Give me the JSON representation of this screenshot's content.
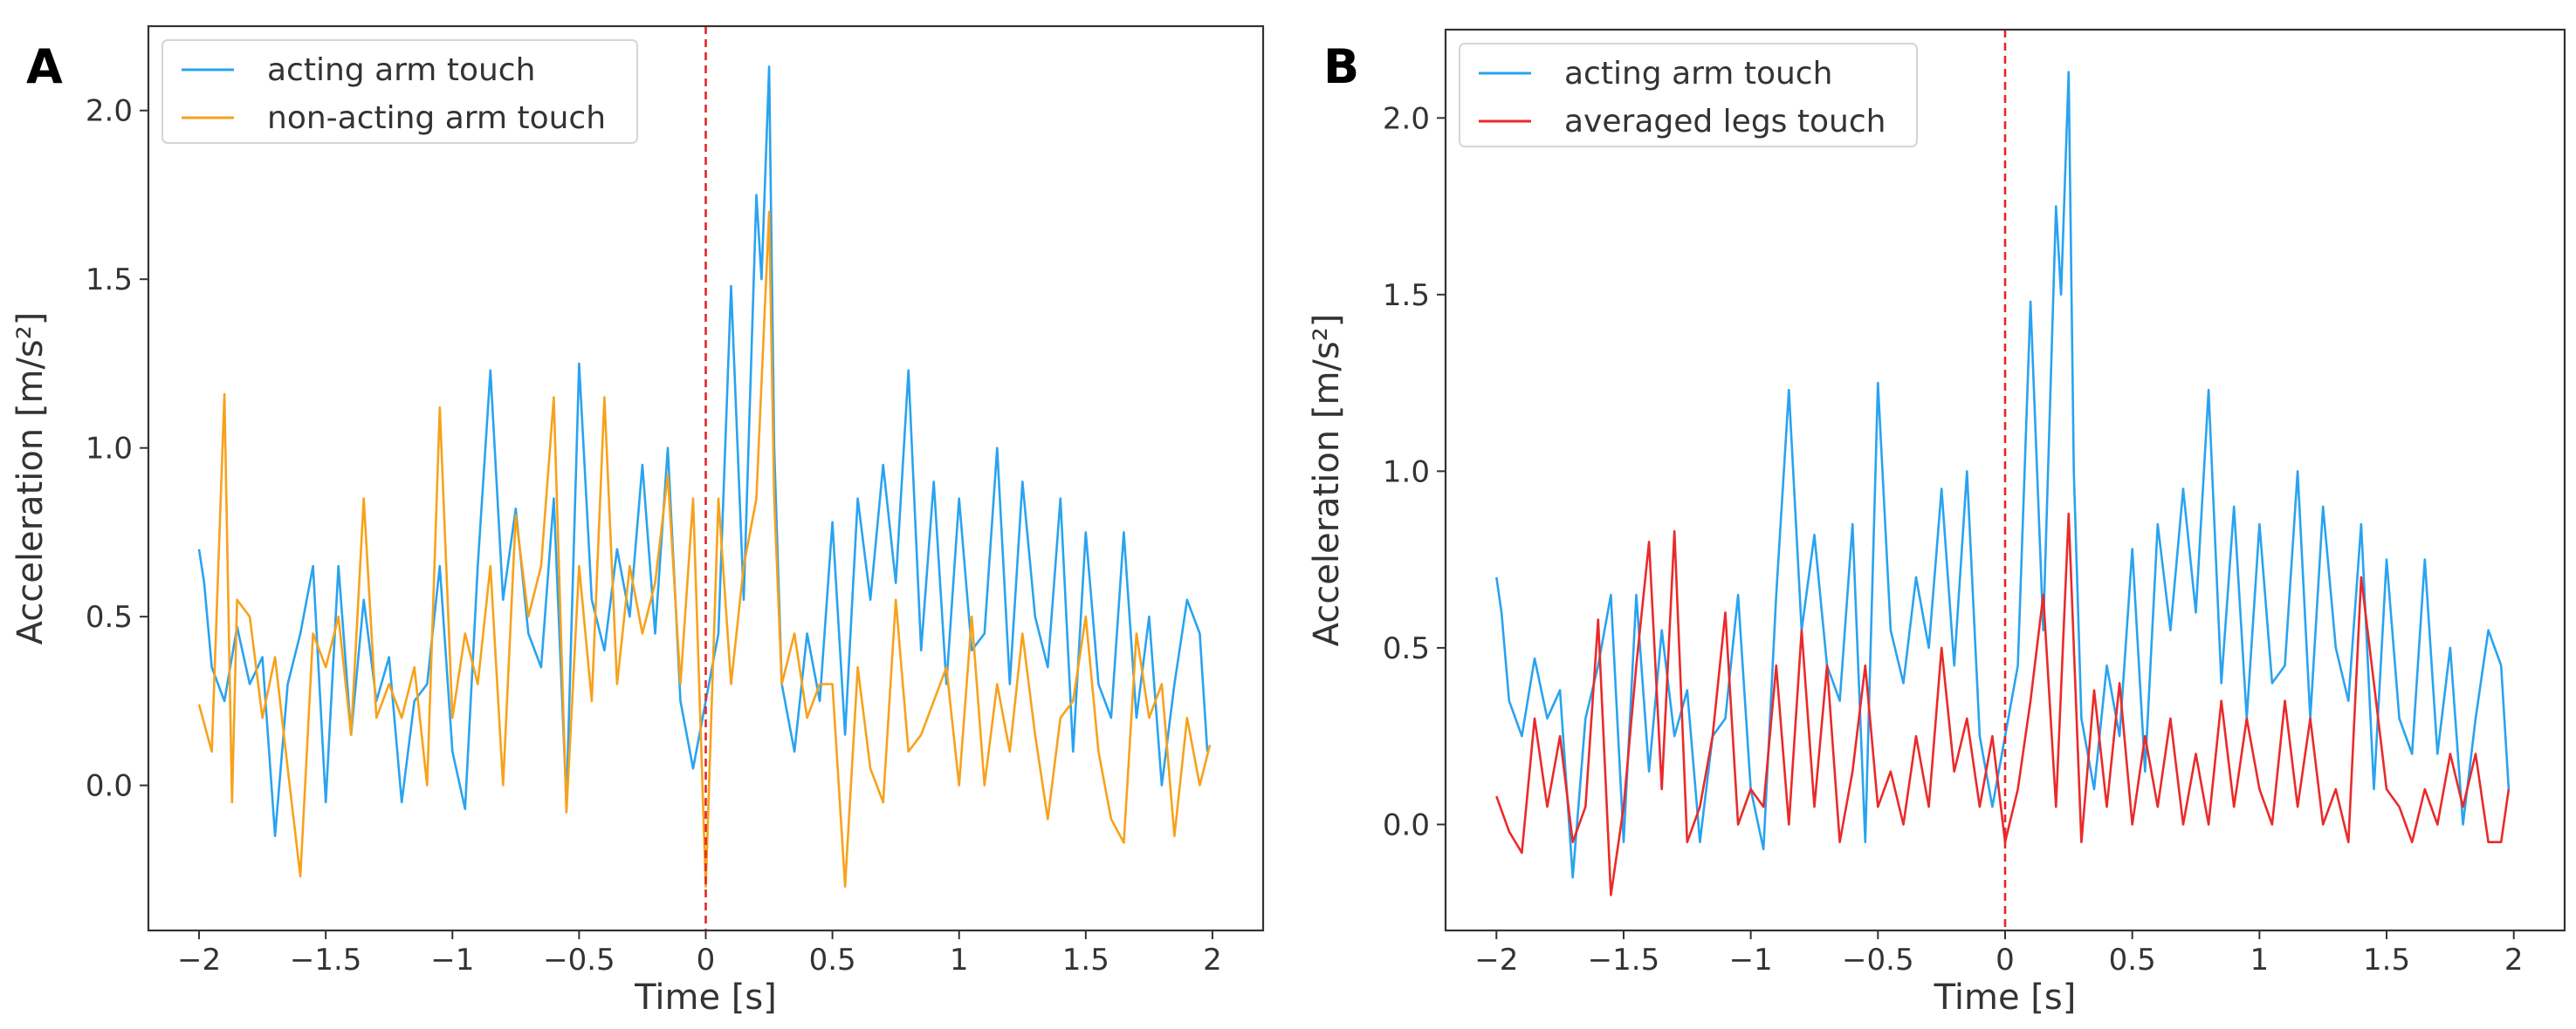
{
  "colors": {
    "acting_arm": "#29a3f0",
    "non_acting_arm": "#f7a21b",
    "legs": "#ea2a2a",
    "event_line": "#e32626",
    "axes": "#333333"
  },
  "chart_data": [
    {
      "panel": "A",
      "type": "line",
      "xlabel": "Time [s]",
      "ylabel": "Acceleration [m/s²]",
      "xlim": [
        -2.2,
        2.2
      ],
      "ylim": [
        -0.43,
        2.25
      ],
      "xticks": [
        -2,
        -1.5,
        -1,
        -0.5,
        0,
        0.5,
        1,
        1.5,
        2
      ],
      "xtick_labels": [
        "−2",
        "−1.5",
        "−1",
        "−0.5",
        "0",
        "0.5",
        "1",
        "1.5",
        "2"
      ],
      "yticks": [
        0,
        0.5,
        1,
        1.5,
        2
      ],
      "ytick_labels": [
        "0.0",
        "0.5",
        "1.0",
        "1.5",
        "2.0"
      ],
      "event_x": 0,
      "legend_position": "top-left",
      "series": [
        {
          "name": "acting arm touch",
          "color": "#29a3f0",
          "x": [
            -2.0,
            -1.98,
            -1.95,
            -1.9,
            -1.85,
            -1.8,
            -1.75,
            -1.7,
            -1.65,
            -1.6,
            -1.55,
            -1.5,
            -1.45,
            -1.4,
            -1.35,
            -1.3,
            -1.25,
            -1.2,
            -1.15,
            -1.1,
            -1.05,
            -1.0,
            -0.95,
            -0.9,
            -0.85,
            -0.8,
            -0.75,
            -0.7,
            -0.65,
            -0.6,
            -0.55,
            -0.5,
            -0.45,
            -0.4,
            -0.35,
            -0.3,
            -0.25,
            -0.2,
            -0.15,
            -0.1,
            -0.05,
            0.0,
            0.05,
            0.1,
            0.15,
            0.2,
            0.22,
            0.25,
            0.27,
            0.3,
            0.35,
            0.4,
            0.45,
            0.5,
            0.55,
            0.6,
            0.65,
            0.7,
            0.75,
            0.8,
            0.85,
            0.9,
            0.95,
            1.0,
            1.05,
            1.1,
            1.15,
            1.2,
            1.25,
            1.3,
            1.35,
            1.4,
            1.45,
            1.5,
            1.55,
            1.6,
            1.65,
            1.7,
            1.75,
            1.8,
            1.85,
            1.9,
            1.95,
            1.98
          ],
          "y": [
            0.7,
            0.6,
            0.35,
            0.25,
            0.47,
            0.3,
            0.38,
            -0.15,
            0.3,
            0.45,
            0.65,
            -0.05,
            0.65,
            0.15,
            0.55,
            0.25,
            0.38,
            -0.05,
            0.25,
            0.3,
            0.65,
            0.1,
            -0.07,
            0.65,
            1.23,
            0.55,
            0.82,
            0.45,
            0.35,
            0.85,
            -0.05,
            1.25,
            0.55,
            0.4,
            0.7,
            0.5,
            0.95,
            0.45,
            1.0,
            0.25,
            0.05,
            0.25,
            0.45,
            1.48,
            0.55,
            1.75,
            1.5,
            2.13,
            1.0,
            0.3,
            0.1,
            0.45,
            0.25,
            0.78,
            0.15,
            0.85,
            0.55,
            0.95,
            0.6,
            1.23,
            0.4,
            0.9,
            0.3,
            0.85,
            0.4,
            0.45,
            1.0,
            0.3,
            0.9,
            0.5,
            0.35,
            0.85,
            0.1,
            0.75,
            0.3,
            0.2,
            0.75,
            0.2,
            0.5,
            0.0,
            0.3,
            0.55,
            0.45,
            0.1
          ]
        },
        {
          "name": "non-acting arm touch",
          "color": "#f7a21b",
          "x": [
            -2.0,
            -1.95,
            -1.9,
            -1.87,
            -1.85,
            -1.8,
            -1.75,
            -1.7,
            -1.65,
            -1.6,
            -1.55,
            -1.5,
            -1.45,
            -1.4,
            -1.35,
            -1.3,
            -1.25,
            -1.2,
            -1.15,
            -1.1,
            -1.05,
            -1.0,
            -0.95,
            -0.9,
            -0.85,
            -0.8,
            -0.75,
            -0.7,
            -0.65,
            -0.6,
            -0.55,
            -0.5,
            -0.45,
            -0.4,
            -0.35,
            -0.3,
            -0.25,
            -0.2,
            -0.15,
            -0.1,
            -0.05,
            0.0,
            0.05,
            0.1,
            0.15,
            0.2,
            0.25,
            0.27,
            0.3,
            0.35,
            0.4,
            0.45,
            0.5,
            0.55,
            0.6,
            0.65,
            0.7,
            0.75,
            0.8,
            0.85,
            0.9,
            0.95,
            1.0,
            1.05,
            1.1,
            1.15,
            1.2,
            1.25,
            1.3,
            1.35,
            1.4,
            1.45,
            1.5,
            1.55,
            1.6,
            1.65,
            1.7,
            1.75,
            1.8,
            1.85,
            1.9,
            1.95,
            1.99
          ],
          "y": [
            0.24,
            0.1,
            1.16,
            -0.05,
            0.55,
            0.5,
            0.2,
            0.38,
            0.05,
            -0.27,
            0.45,
            0.35,
            0.5,
            0.15,
            0.85,
            0.2,
            0.3,
            0.2,
            0.35,
            0.0,
            1.12,
            0.2,
            0.45,
            0.3,
            0.65,
            0.0,
            0.8,
            0.5,
            0.65,
            1.15,
            -0.08,
            0.65,
            0.25,
            1.15,
            0.3,
            0.65,
            0.45,
            0.6,
            0.92,
            0.3,
            0.85,
            -0.3,
            0.85,
            0.3,
            0.65,
            0.85,
            1.7,
            0.85,
            0.3,
            0.45,
            0.2,
            0.3,
            0.3,
            -0.3,
            0.35,
            0.05,
            -0.05,
            0.55,
            0.1,
            0.15,
            0.25,
            0.35,
            0.0,
            0.5,
            0.0,
            0.3,
            0.1,
            0.45,
            0.15,
            -0.1,
            0.2,
            0.25,
            0.5,
            0.1,
            -0.1,
            -0.17,
            0.45,
            0.2,
            0.3,
            -0.15,
            0.2,
            0.0,
            0.12
          ]
        }
      ]
    },
    {
      "panel": "B",
      "type": "line",
      "xlabel": "Time [s]",
      "ylabel": "Acceleration [m/s²]",
      "xlim": [
        -2.2,
        2.2
      ],
      "ylim": [
        -0.3,
        2.25
      ],
      "xticks": [
        -2,
        -1.5,
        -1,
        -0.5,
        0,
        0.5,
        1,
        1.5,
        2
      ],
      "xtick_labels": [
        "−2",
        "−1.5",
        "−1",
        "−0.5",
        "0",
        "0.5",
        "1",
        "1.5",
        "2"
      ],
      "yticks": [
        0,
        0.5,
        1,
        1.5,
        2
      ],
      "ytick_labels": [
        "0.0",
        "0.5",
        "1.0",
        "1.5",
        "2.0"
      ],
      "event_x": 0,
      "legend_position": "top-left",
      "series": [
        {
          "name": "acting arm touch",
          "color": "#29a3f0",
          "x": [
            -2.0,
            -1.98,
            -1.95,
            -1.9,
            -1.85,
            -1.8,
            -1.75,
            -1.7,
            -1.65,
            -1.6,
            -1.55,
            -1.5,
            -1.45,
            -1.4,
            -1.35,
            -1.3,
            -1.25,
            -1.2,
            -1.15,
            -1.1,
            -1.05,
            -1.0,
            -0.95,
            -0.9,
            -0.85,
            -0.8,
            -0.75,
            -0.7,
            -0.65,
            -0.6,
            -0.55,
            -0.5,
            -0.45,
            -0.4,
            -0.35,
            -0.3,
            -0.25,
            -0.2,
            -0.15,
            -0.1,
            -0.05,
            0.0,
            0.05,
            0.1,
            0.15,
            0.2,
            0.22,
            0.25,
            0.27,
            0.3,
            0.35,
            0.4,
            0.45,
            0.5,
            0.55,
            0.6,
            0.65,
            0.7,
            0.75,
            0.8,
            0.85,
            0.9,
            0.95,
            1.0,
            1.05,
            1.1,
            1.15,
            1.2,
            1.25,
            1.3,
            1.35,
            1.4,
            1.45,
            1.5,
            1.55,
            1.6,
            1.65,
            1.7,
            1.75,
            1.8,
            1.85,
            1.9,
            1.95,
            1.98
          ],
          "y": [
            0.7,
            0.6,
            0.35,
            0.25,
            0.47,
            0.3,
            0.38,
            -0.15,
            0.3,
            0.45,
            0.65,
            -0.05,
            0.65,
            0.15,
            0.55,
            0.25,
            0.38,
            -0.05,
            0.25,
            0.3,
            0.65,
            0.1,
            -0.07,
            0.65,
            1.23,
            0.55,
            0.82,
            0.45,
            0.35,
            0.85,
            -0.05,
            1.25,
            0.55,
            0.4,
            0.7,
            0.5,
            0.95,
            0.45,
            1.0,
            0.25,
            0.05,
            0.25,
            0.45,
            1.48,
            0.55,
            1.75,
            1.5,
            2.13,
            1.0,
            0.3,
            0.1,
            0.45,
            0.25,
            0.78,
            0.15,
            0.85,
            0.55,
            0.95,
            0.6,
            1.23,
            0.4,
            0.9,
            0.3,
            0.85,
            0.4,
            0.45,
            1.0,
            0.3,
            0.9,
            0.5,
            0.35,
            0.85,
            0.1,
            0.75,
            0.3,
            0.2,
            0.75,
            0.2,
            0.5,
            0.0,
            0.3,
            0.55,
            0.45,
            0.1
          ]
        },
        {
          "name": "averaged legs touch",
          "color": "#ea2a2a",
          "x": [
            -2.0,
            -1.95,
            -1.9,
            -1.85,
            -1.8,
            -1.75,
            -1.7,
            -1.65,
            -1.6,
            -1.55,
            -1.5,
            -1.45,
            -1.4,
            -1.35,
            -1.3,
            -1.25,
            -1.2,
            -1.15,
            -1.1,
            -1.05,
            -1.0,
            -0.95,
            -0.9,
            -0.85,
            -0.8,
            -0.75,
            -0.7,
            -0.65,
            -0.6,
            -0.55,
            -0.5,
            -0.45,
            -0.4,
            -0.35,
            -0.3,
            -0.25,
            -0.2,
            -0.15,
            -0.1,
            -0.05,
            0.0,
            0.05,
            0.1,
            0.15,
            0.2,
            0.25,
            0.3,
            0.35,
            0.4,
            0.45,
            0.5,
            0.55,
            0.6,
            0.65,
            0.7,
            0.75,
            0.8,
            0.85,
            0.9,
            0.95,
            1.0,
            1.05,
            1.1,
            1.15,
            1.2,
            1.25,
            1.3,
            1.35,
            1.4,
            1.45,
            1.5,
            1.55,
            1.6,
            1.65,
            1.7,
            1.75,
            1.8,
            1.85,
            1.9,
            1.95,
            1.98
          ],
          "y": [
            0.08,
            -0.02,
            -0.08,
            0.3,
            0.05,
            0.25,
            -0.05,
            0.05,
            0.58,
            -0.2,
            0.05,
            0.45,
            0.8,
            0.1,
            0.83,
            -0.05,
            0.05,
            0.25,
            0.6,
            0.0,
            0.1,
            0.05,
            0.45,
            0.0,
            0.55,
            0.05,
            0.45,
            -0.05,
            0.15,
            0.45,
            0.05,
            0.15,
            0.0,
            0.25,
            0.05,
            0.5,
            0.15,
            0.3,
            0.05,
            0.25,
            -0.05,
            0.1,
            0.35,
            0.65,
            0.05,
            0.88,
            -0.05,
            0.38,
            0.05,
            0.4,
            0.0,
            0.25,
            0.05,
            0.3,
            0.0,
            0.2,
            0.0,
            0.35,
            0.05,
            0.3,
            0.1,
            0.0,
            0.35,
            0.05,
            0.3,
            0.0,
            0.1,
            -0.05,
            0.7,
            0.4,
            0.1,
            0.05,
            -0.05,
            0.1,
            0.0,
            0.2,
            0.05,
            0.2,
            -0.05,
            -0.05,
            0.1
          ]
        }
      ]
    }
  ]
}
